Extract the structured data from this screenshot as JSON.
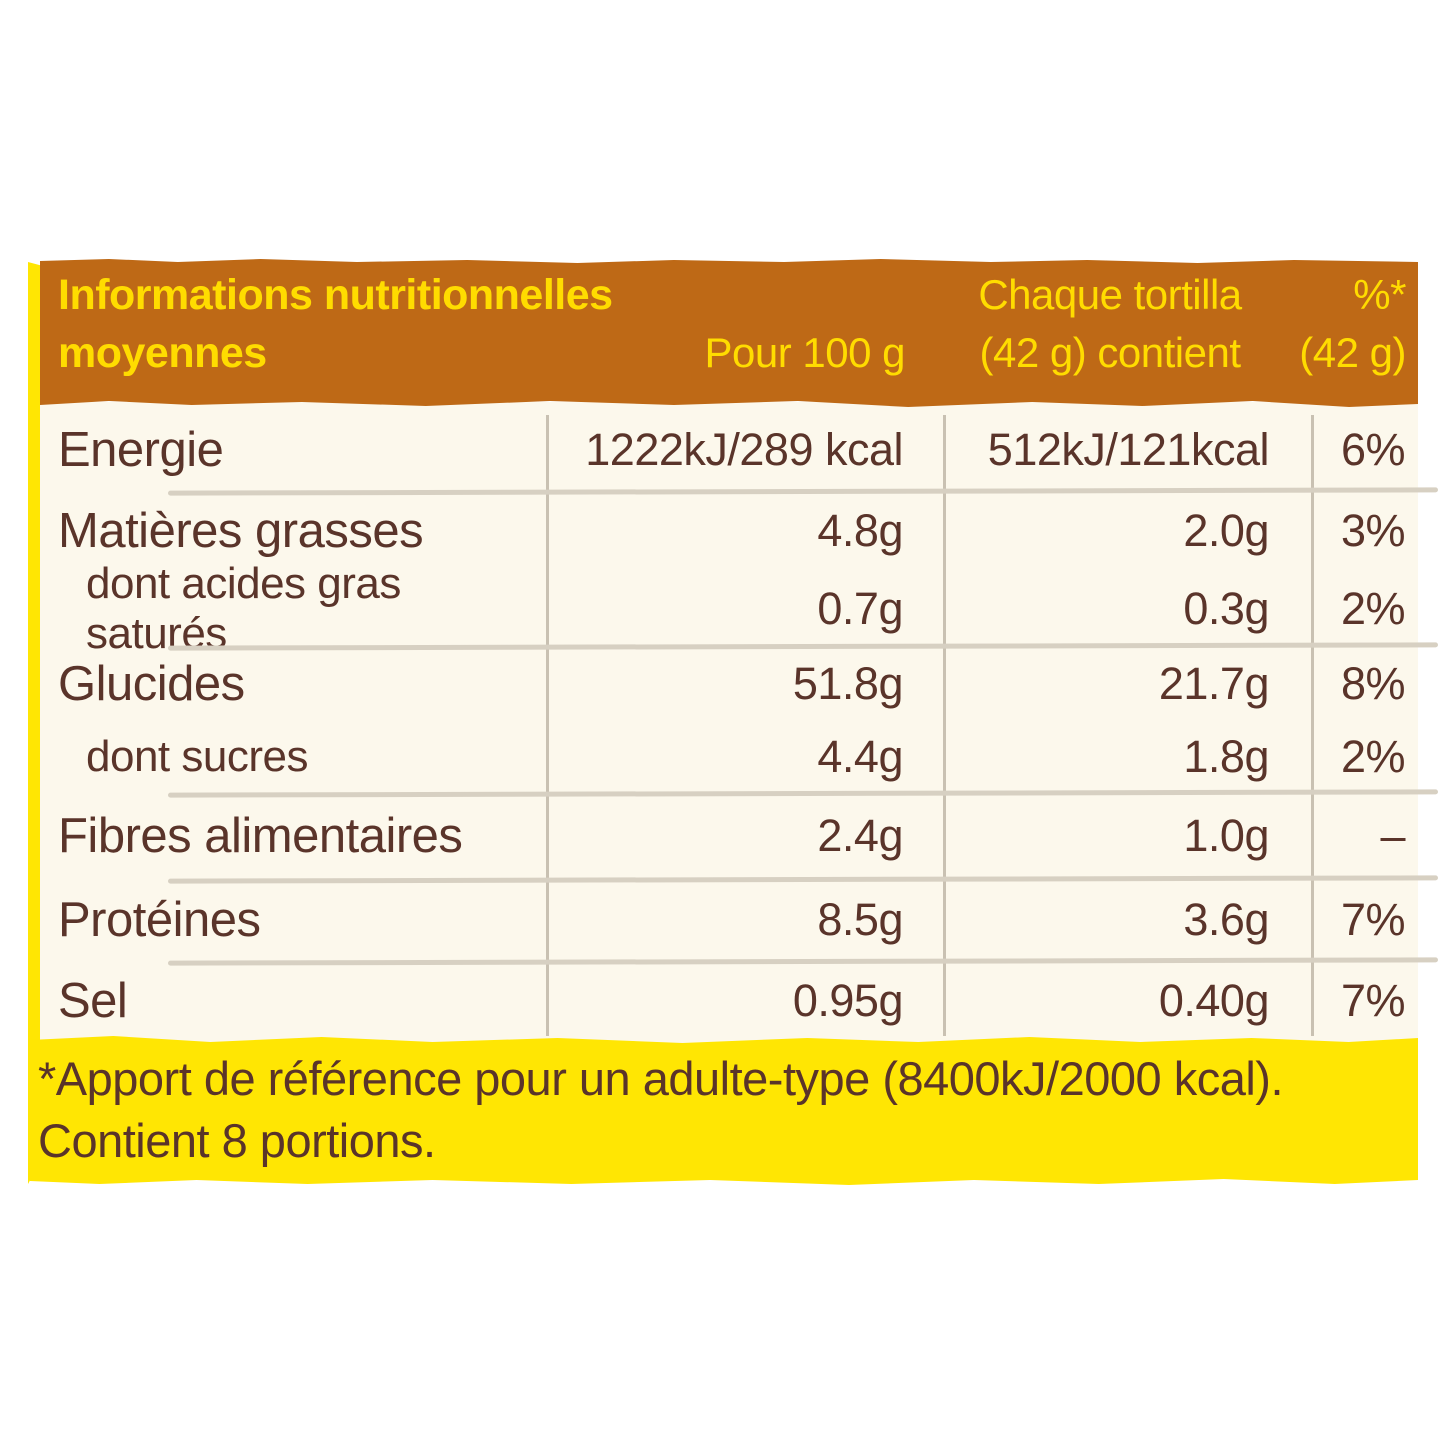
{
  "header": {
    "title_line1": "Informations nutritionnelles",
    "title_line2": "moyennes",
    "col_per100": "Pour 100 g",
    "col_portion_line1": "Chaque tortilla",
    "col_portion_line2": "(42 g) contient",
    "col_pct_line1": "%*",
    "col_pct_line2": "(42 g)"
  },
  "table": {
    "rows": [
      {
        "label": "Energie",
        "per100": "1222kJ/289 kcal",
        "portion": "512kJ/121kcal",
        "pct": "6%"
      },
      {
        "label": "Matières grasses",
        "per100": "4.8g",
        "portion": "2.0g",
        "pct": "3%"
      },
      {
        "label": "dont acides gras saturés",
        "per100": "0.7g",
        "portion": "0.3g",
        "pct": "2%"
      },
      {
        "label": "Glucides",
        "per100": "51.8g",
        "portion": "21.7g",
        "pct": "8%"
      },
      {
        "label": "dont sucres",
        "per100": "4.4g",
        "portion": "1.8g",
        "pct": "2%"
      },
      {
        "label": "Fibres alimentaires",
        "per100": "2.4g",
        "portion": "1.0g",
        "pct": "–"
      },
      {
        "label": "Protéines",
        "per100": "8.5g",
        "portion": "3.6g",
        "pct": "7%"
      },
      {
        "label": "Sel",
        "per100": "0.95g",
        "portion": "0.40g",
        "pct": "7%"
      }
    ]
  },
  "footer": {
    "line1": "*Apport de référence pour un adulte-type (8400kJ/2000 kcal).",
    "line2": "Contient 8 portions."
  },
  "colors": {
    "header_bg": "#BE6916",
    "header_text": "#FFDC00",
    "body_bg": "#FCF8EC",
    "text": "#5A342A",
    "accent_yellow": "#FFE603",
    "column_divider": "#C9C1B2",
    "row_separator": "#D7D0C2"
  }
}
